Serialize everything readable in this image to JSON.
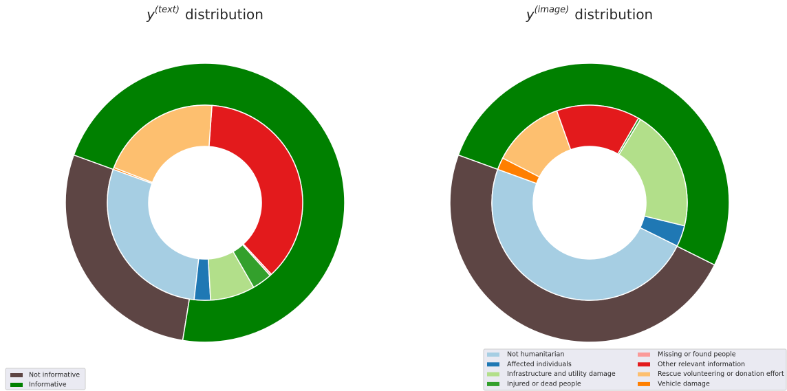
{
  "chart_data": [
    {
      "type": "donut",
      "title": {
        "base": "y",
        "sup": "(text)",
        "rest": "distribution"
      },
      "outer": {
        "categories": [
          "Not informative",
          "Informative"
        ],
        "colors": [
          "#5d4544",
          "#008000"
        ],
        "values": [
          28,
          72
        ]
      },
      "inner": {
        "colors": [
          "#a6cee3",
          "#1f78b4",
          "#b2df8a",
          "#33a02c",
          "#fb9a99",
          "#e31a1c",
          "#fdbf6f",
          "#ff7f00"
        ],
        "values": [
          28.8,
          2.7,
          7.4,
          3.3,
          0.3,
          37,
          20.3,
          0.3
        ]
      },
      "legend": "lower left"
    },
    {
      "type": "donut",
      "title": {
        "base": "y",
        "sup": "(image)",
        "rest": "distribution"
      },
      "outer": {
        "colors": [
          "#5d4544",
          "#008000"
        ],
        "values": [
          48.2,
          51.8
        ]
      },
      "inner": {
        "categories": [
          "Not humanitarian",
          "Affected individuals",
          "Infrastructure and utility damage",
          "Injured or dead people",
          "Missing or found people",
          "Other relevant information",
          "Rescue volunteering or donation effort",
          "Vehicle damage"
        ],
        "colors": [
          "#a6cee3",
          "#1f78b4",
          "#b2df8a",
          "#33a02c",
          "#fb9a99",
          "#e31a1c",
          "#fdbf6f",
          "#ff7f00"
        ],
        "values": [
          48.3,
          3.5,
          20.1,
          0.4,
          0,
          13.8,
          12,
          2
        ]
      },
      "legend": "lower right"
    }
  ]
}
